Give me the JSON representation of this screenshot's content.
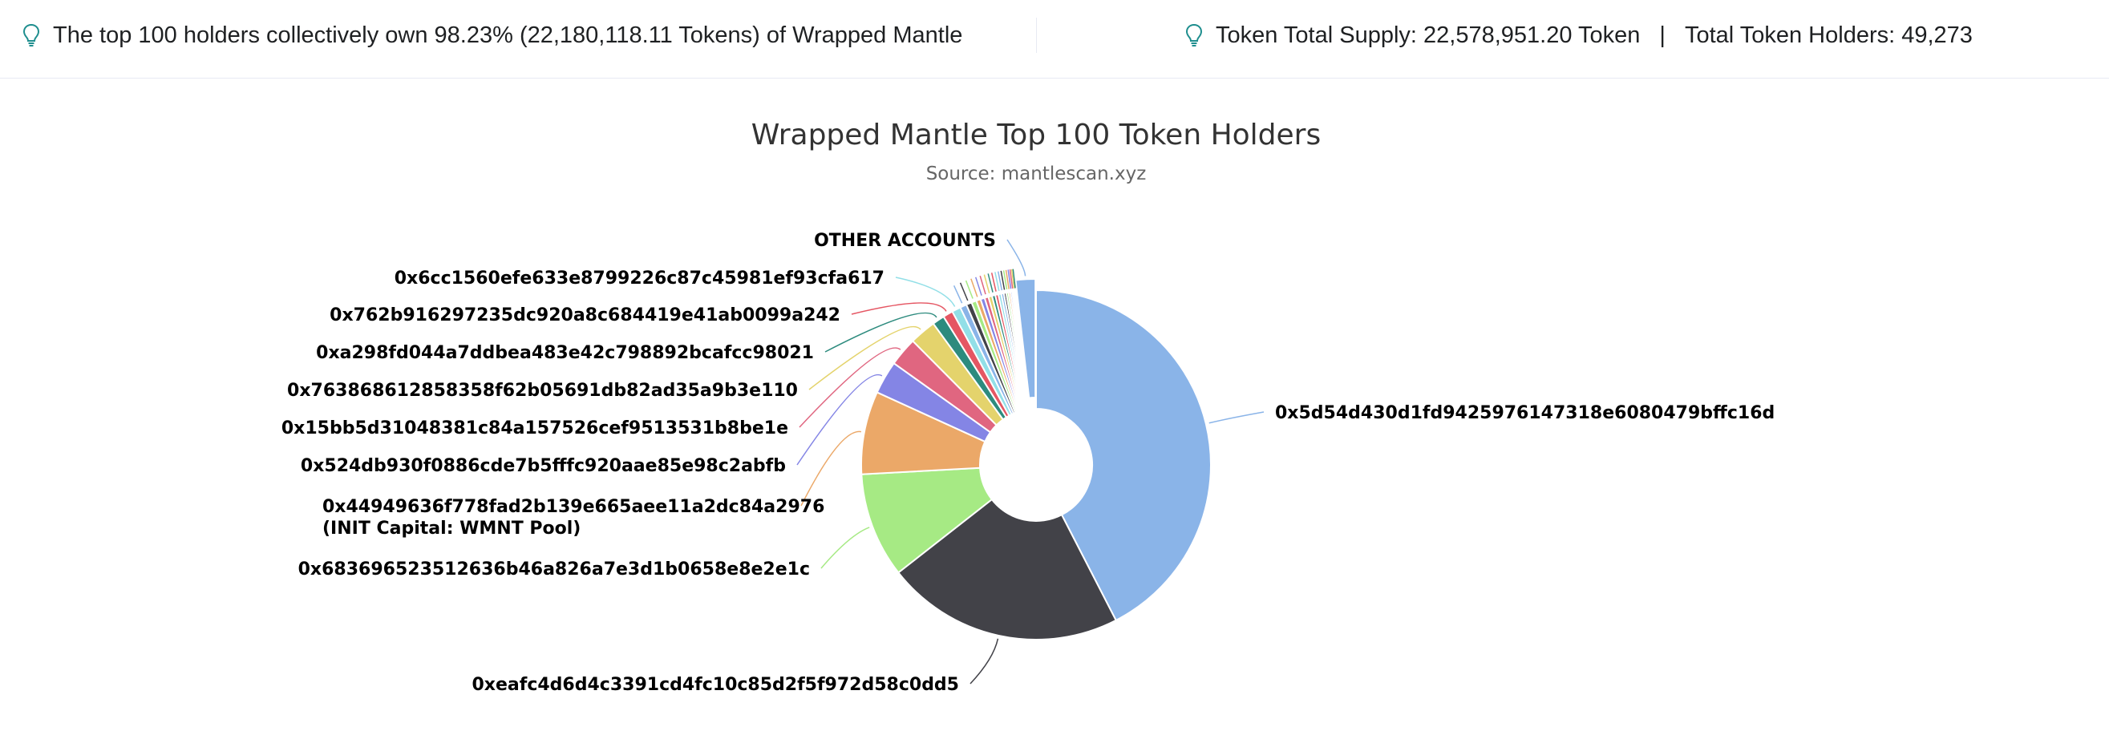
{
  "summary": {
    "left_text": "The top 100 holders collectively own 98.23% (22,180,118.11 Tokens) of Wrapped Mantle",
    "supply_text": "Token Total Supply: 22,578,951.20 Token",
    "separator": "|",
    "holders_text": "Total Token Holders: 49,273",
    "icon": "lightbulb-icon",
    "icon_color": "#1e8e8e"
  },
  "chart_data": {
    "type": "pie",
    "variant": "donut",
    "title": "Wrapped Mantle Top 100 Token Holders",
    "subtitle": "Source: mantlescan.xyz",
    "legend": "none",
    "slices": [
      {
        "label": "0x5d54d430d1fd9425976147318e6080479bffc16d",
        "value": 41.5,
        "color": "#8ab4e8"
      },
      {
        "label": "0xeafc4d6d4c3391cd4fc10c85d2f5f972d58c0dd5",
        "value": 21.5,
        "color": "#424248"
      },
      {
        "label": "0x683696523512636b46a826a7e3d1b0658e8e2e1c",
        "value": 9.5,
        "color": "#a6ea84"
      },
      {
        "label": "0x44949636f778fad2b139e665aee11a2dc84a2976",
        "label2": "(INIT Capital: WMNT Pool)",
        "value": 7.5,
        "color": "#eba868"
      },
      {
        "label": "0x524db930f0886cde7b5fffc920aae85e98c2abfb",
        "value": 3.0,
        "color": "#8485e5"
      },
      {
        "label": "0x15bb5d31048381c84a157526cef9513531b8be1e",
        "value": 2.6,
        "color": "#e06680"
      },
      {
        "label": "0x763868612858358f62b05691db82ad35a9b3e110",
        "value": 2.4,
        "color": "#e4d36c"
      },
      {
        "label": "0xa298fd044a7ddbea483e42c798892bcafcc98021",
        "value": 1.1,
        "color": "#2d8b7e"
      },
      {
        "label": "0x762b916297235dc920a8c684419e41ab0099a242",
        "value": 0.9,
        "color": "#e55663"
      },
      {
        "label": "0x6cc1560efe633e8799226c87c45981ef93cfa617",
        "value": 0.8,
        "color": "#92dfe7"
      },
      {
        "label": "",
        "value": 0.6,
        "color": "#8ab4e8"
      },
      {
        "label": "",
        "value": 0.5,
        "color": "#424248"
      },
      {
        "label": "",
        "value": 0.45,
        "color": "#a6ea84"
      },
      {
        "label": "",
        "value": 0.4,
        "color": "#eba868"
      },
      {
        "label": "",
        "value": 0.38,
        "color": "#8485e5"
      },
      {
        "label": "",
        "value": 0.35,
        "color": "#e06680"
      },
      {
        "label": "",
        "value": 0.33,
        "color": "#e4d36c"
      },
      {
        "label": "",
        "value": 0.3,
        "color": "#2d8b7e"
      },
      {
        "label": "",
        "value": 0.28,
        "color": "#e55663"
      },
      {
        "label": "",
        "value": 0.26,
        "color": "#92dfe7"
      },
      {
        "label": "",
        "value": 0.24,
        "color": "#8ab4e8"
      },
      {
        "label": "",
        "value": 0.22,
        "color": "#424248"
      },
      {
        "label": "",
        "value": 0.2,
        "color": "#a6ea84"
      },
      {
        "label": "",
        "value": 0.18,
        "color": "#eba868"
      },
      {
        "label": "",
        "value": 0.16,
        "color": "#8485e5"
      },
      {
        "label": "",
        "value": 0.14,
        "color": "#e06680"
      },
      {
        "label": "",
        "value": 0.12,
        "color": "#e4d36c"
      },
      {
        "label": "",
        "value": 0.1,
        "color": "#2d8b7e"
      },
      {
        "label": "OTHER ACCOUNTS",
        "value": 1.77,
        "color": "#8ab4e8"
      }
    ]
  }
}
